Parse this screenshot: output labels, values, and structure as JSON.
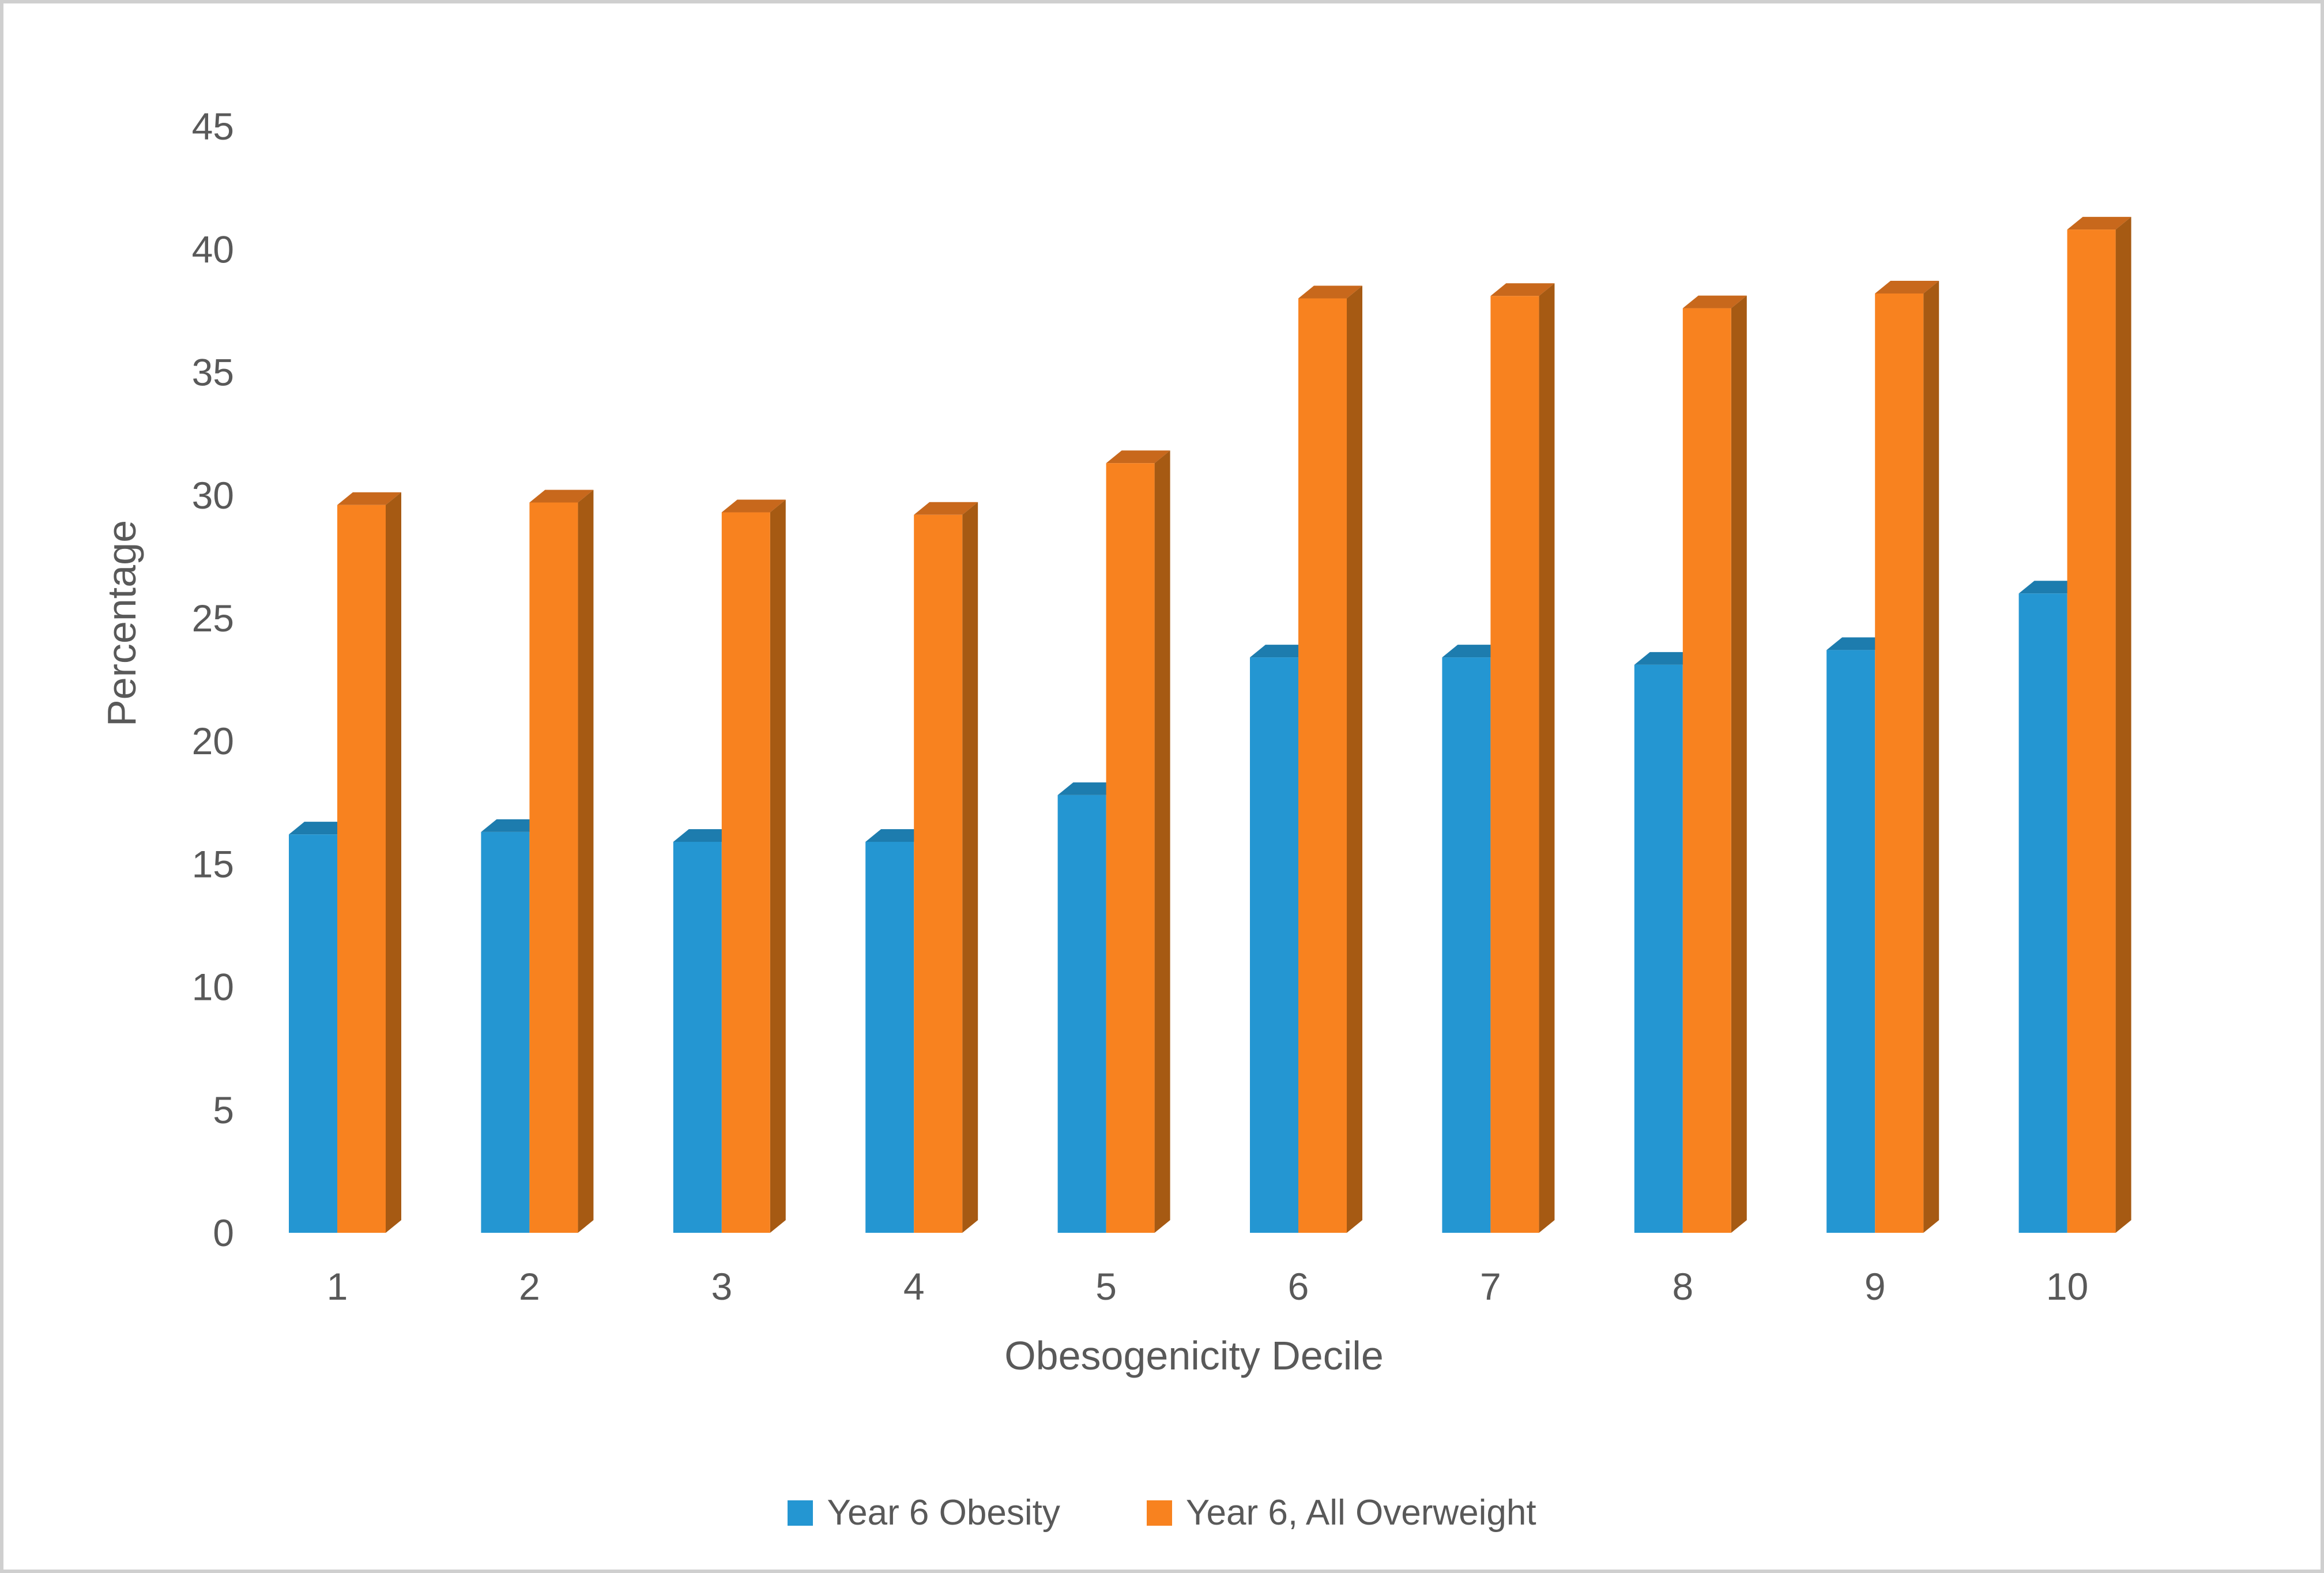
{
  "window": {
    "background": "#FFFFFF",
    "border_color": "#CFCFCF"
  },
  "chart_data": {
    "type": "bar",
    "subtype": "3d_clustered_column",
    "title": "",
    "xlabel": "Obesogenicity Decile",
    "ylabel": "Percentage",
    "categories": [
      "1",
      "2",
      "3",
      "4",
      "5",
      "6",
      "7",
      "8",
      "9",
      "10"
    ],
    "series": [
      {
        "name": "Year 6 Obesity",
        "color": "#2496D2",
        "top_color": "#1D7CAE",
        "side_color": "#15618C",
        "values": [
          16.2,
          16.3,
          15.9,
          15.9,
          17.8,
          23.4,
          23.4,
          23.1,
          23.7,
          26.0
        ]
      },
      {
        "name": "Year 6, All Overweight",
        "color": "#F8821F",
        "top_color": "#C8681C",
        "side_color": "#A65A13",
        "values": [
          29.6,
          29.7,
          29.3,
          29.2,
          31.3,
          38.0,
          38.1,
          37.6,
          38.2,
          40.8
        ]
      }
    ],
    "ylim": [
      0,
      45
    ],
    "ytick_step": 5,
    "ytick_labels": [
      "0",
      "5",
      "10",
      "15",
      "20",
      "25",
      "30",
      "35",
      "40",
      "45"
    ],
    "grid": false,
    "legend_position": "bottom",
    "text_color": "#595959"
  }
}
